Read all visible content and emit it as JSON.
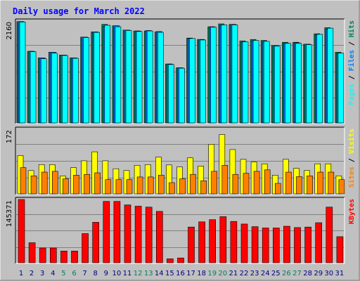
{
  "colors": {
    "background": "#c0c0c0",
    "frame_dark": "#000000",
    "title": "#0000ff",
    "hits": "#00805c",
    "files": "#0080ff",
    "pages": "#00ffff",
    "visits": "#ffff00",
    "sites": "#ff8000",
    "kbytes": "#ff0000",
    "weekend": "#00805c",
    "weekday": "#000080"
  },
  "chart_data": [
    {
      "type": "bar",
      "title": "Daily usage for March 2022",
      "ylabel_parts": [
        "Pages",
        "Files",
        "Hits"
      ],
      "ymax_label": "2160",
      "ylim": [
        0,
        2160
      ],
      "categories": [
        "1",
        "2",
        "3",
        "4",
        "5",
        "6",
        "7",
        "8",
        "9",
        "10",
        "11",
        "12",
        "13",
        "14",
        "15",
        "16",
        "17",
        "18",
        "19",
        "20",
        "21",
        "22",
        "23",
        "24",
        "25",
        "26",
        "27",
        "28",
        "29",
        "30",
        "31"
      ],
      "weekend_days": [
        "5",
        "6",
        "12",
        "13",
        "19",
        "20",
        "26",
        "27"
      ],
      "series": [
        {
          "name": "Hits",
          "values": [
            2150,
            1520,
            1380,
            1500,
            1440,
            1380,
            1820,
            1930,
            2090,
            2060,
            1970,
            1950,
            1950,
            1930,
            1250,
            1170,
            1800,
            1770,
            2040,
            2100,
            2090,
            1740,
            1770,
            1750,
            1640,
            1710,
            1710,
            1670,
            1890,
            2020,
            1500
          ]
        },
        {
          "name": "Files",
          "values": [
            2150,
            1520,
            1380,
            1500,
            1440,
            1380,
            1820,
            1930,
            2050,
            2060,
            1970,
            1950,
            1960,
            1940,
            1250,
            1170,
            1790,
            1770,
            2040,
            2070,
            2090,
            1710,
            1740,
            1720,
            1640,
            1690,
            1700,
            1670,
            1870,
            1990,
            1470
          ]
        },
        {
          "name": "Pages",
          "values": [
            2140,
            1510,
            1360,
            1480,
            1430,
            1370,
            1810,
            1920,
            2070,
            2040,
            1960,
            1940,
            1950,
            1920,
            1240,
            1160,
            1790,
            1760,
            2030,
            2080,
            2080,
            1720,
            1750,
            1730,
            1630,
            1690,
            1690,
            1660,
            1880,
            2010,
            1480
          ]
        }
      ]
    },
    {
      "type": "bar",
      "ylabel_parts": [
        "Sites",
        "Visits"
      ],
      "ymax_label": "172",
      "ylim": [
        0,
        172
      ],
      "categories": [
        "1",
        "2",
        "3",
        "4",
        "5",
        "6",
        "7",
        "8",
        "9",
        "10",
        "11",
        "12",
        "13",
        "14",
        "15",
        "16",
        "17",
        "18",
        "19",
        "20",
        "21",
        "22",
        "23",
        "24",
        "25",
        "26",
        "27",
        "28",
        "29",
        "30",
        "31"
      ],
      "series": [
        {
          "name": "Visits",
          "values": [
            102,
            62,
            78,
            78,
            48,
            70,
            88,
            112,
            88,
            67,
            62,
            76,
            78,
            98,
            77,
            72,
            96,
            74,
            132,
            158,
            118,
            92,
            85,
            80,
            50,
            92,
            68,
            62,
            80,
            80,
            48
          ]
        },
        {
          "name": "Sites",
          "values": [
            70,
            48,
            58,
            60,
            40,
            50,
            52,
            56,
            38,
            38,
            38,
            45,
            45,
            50,
            30,
            40,
            52,
            35,
            60,
            76,
            52,
            55,
            60,
            64,
            28,
            58,
            46,
            48,
            58,
            58,
            38
          ]
        }
      ]
    },
    {
      "type": "bar",
      "ylabel_parts": [
        "KBytes"
      ],
      "ymax_label": "145371",
      "ylim": [
        0,
        145371
      ],
      "categories": [
        "1",
        "2",
        "3",
        "4",
        "5",
        "6",
        "7",
        "8",
        "9",
        "10",
        "11",
        "12",
        "13",
        "14",
        "15",
        "16",
        "17",
        "18",
        "19",
        "20",
        "21",
        "22",
        "23",
        "24",
        "25",
        "26",
        "27",
        "28",
        "29",
        "30",
        "31"
      ],
      "series": [
        {
          "name": "KBytes",
          "values": [
            145371,
            46000,
            34000,
            34000,
            27000,
            27000,
            67000,
            93000,
            141000,
            141000,
            133000,
            130000,
            128000,
            118000,
            9000,
            11000,
            82000,
            94000,
            99000,
            106000,
            95000,
            89000,
            83000,
            80000,
            80000,
            84000,
            81000,
            82000,
            92000,
            128000,
            60000
          ]
        }
      ]
    }
  ]
}
